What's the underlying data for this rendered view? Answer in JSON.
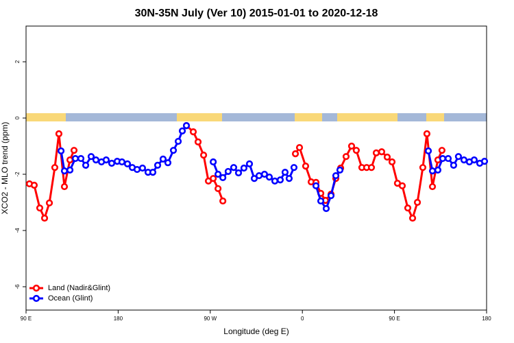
{
  "chart_data": {
    "type": "line",
    "title": "30N-35N July (Ver 10)   2015-01-01 to 2020-12-18",
    "x_label": "Longitude (deg E)",
    "y_label": "XCO2 - MLO trend (ppm)",
    "xlim": [
      90,
      540
    ],
    "ylim": [
      -6.83,
      3.27
    ],
    "xticks": [
      {
        "value": 90,
        "label": "90 E"
      },
      180,
      {
        "value": 270,
        "label": "90 W"
      },
      {
        "value": 360,
        "label": "0"
      },
      {
        "value": 450,
        "label": "90 E"
      },
      {
        "value": 540,
        "label": "180"
      }
    ],
    "yticks": [
      2,
      0,
      -2,
      -4,
      -6
    ],
    "legend": "bottomleft",
    "series": [
      {
        "name": "Land (Nadir&Glint)",
        "color": "#ff0000",
        "x": [
          93.3,
          98.0,
          103.4,
          108.1,
          112.8,
          118.1,
          122.1,
          127.5,
          132.9,
          136.9,
          null,
          246.7,
          253.4,
          258.1,
          263.5,
          268.2,
          272.9,
          277.6,
          282.3,
          null,
          353.2,
          357.2,
          363.2,
          368.6,
          373.3,
          378.0,
          382.6,
          388.0,
          392.7,
          397.4,
          402.7,
          408.1,
          412.7,
          418.1,
          422.8,
          427.5,
          432.2,
          437.5,
          442.9,
          447.6,
          452.9,
          457.6,
          463.0,
          467.7,
          472.4,
          477.7,
          481.7,
          487.1,
          492.4,
          496.4
        ],
        "values": [
          -2.34,
          -2.39,
          -3.2,
          -3.56,
          -3.02,
          -1.76,
          -0.56,
          -2.44,
          -1.49,
          -1.15,
          null,
          -0.27,
          -0.49,
          -0.85,
          -1.32,
          -2.24,
          -2.15,
          -2.51,
          -2.95,
          null,
          -1.27,
          -1.05,
          -1.71,
          -2.27,
          -2.29,
          -2.68,
          -2.93,
          -2.71,
          -2.15,
          -1.78,
          -1.37,
          -1.0,
          -1.15,
          -1.76,
          -1.76,
          -1.76,
          -1.24,
          -1.2,
          -1.39,
          -1.56,
          -2.32,
          -2.41,
          -3.2,
          -3.56,
          -3.0,
          -1.76,
          -0.56,
          -2.44,
          -1.49,
          -1.15
        ]
      },
      {
        "name": "Ocean (Glint)",
        "color": "#0000ff",
        "x": [
          124.2,
          127.5,
          132.9,
          138.2,
          143.6,
          148.3,
          153.6,
          158.3,
          163.7,
          168.3,
          173.7,
          179.1,
          183.7,
          189.1,
          193.8,
          198.5,
          203.8,
          209.2,
          213.9,
          218.6,
          223.9,
          228.6,
          234.0,
          238.7,
          242.7,
          246.7,
          null,
          272.9,
          277.6,
          282.3,
          287.5,
          292.9,
          297.6,
          302.9,
          308.3,
          313.0,
          317.7,
          323.0,
          327.7,
          333.1,
          338.4,
          343.1,
          347.1,
          351.8,
          null,
          373.3,
          378.0,
          383.3,
          388.0,
          392.7,
          396.7,
          null,
          483.1,
          487.1,
          492.4,
          497.1,
          502.5,
          507.8,
          512.5,
          517.9,
          523.2,
          527.9,
          533.3,
          538.0
        ],
        "values": [
          -1.17,
          -1.88,
          -1.85,
          -1.44,
          -1.44,
          -1.68,
          -1.37,
          -1.49,
          -1.56,
          -1.49,
          -1.61,
          -1.54,
          -1.56,
          -1.63,
          -1.76,
          -1.83,
          -1.78,
          -1.93,
          -1.93,
          -1.68,
          -1.46,
          -1.59,
          -1.15,
          -0.83,
          -0.46,
          -0.27,
          null,
          -1.56,
          -2.0,
          -2.12,
          -1.9,
          -1.76,
          -1.95,
          -1.78,
          -1.63,
          -2.15,
          -2.05,
          -2.0,
          -2.1,
          -2.24,
          -2.2,
          -1.93,
          -2.15,
          -1.76,
          null,
          -2.41,
          -2.95,
          -3.22,
          -2.76,
          -2.05,
          -1.85,
          null,
          -1.17,
          -1.88,
          -1.85,
          -1.44,
          -1.44,
          -1.68,
          -1.37,
          -1.49,
          -1.56,
          -1.49,
          -1.61,
          -1.54
        ]
      }
    ]
  }
}
